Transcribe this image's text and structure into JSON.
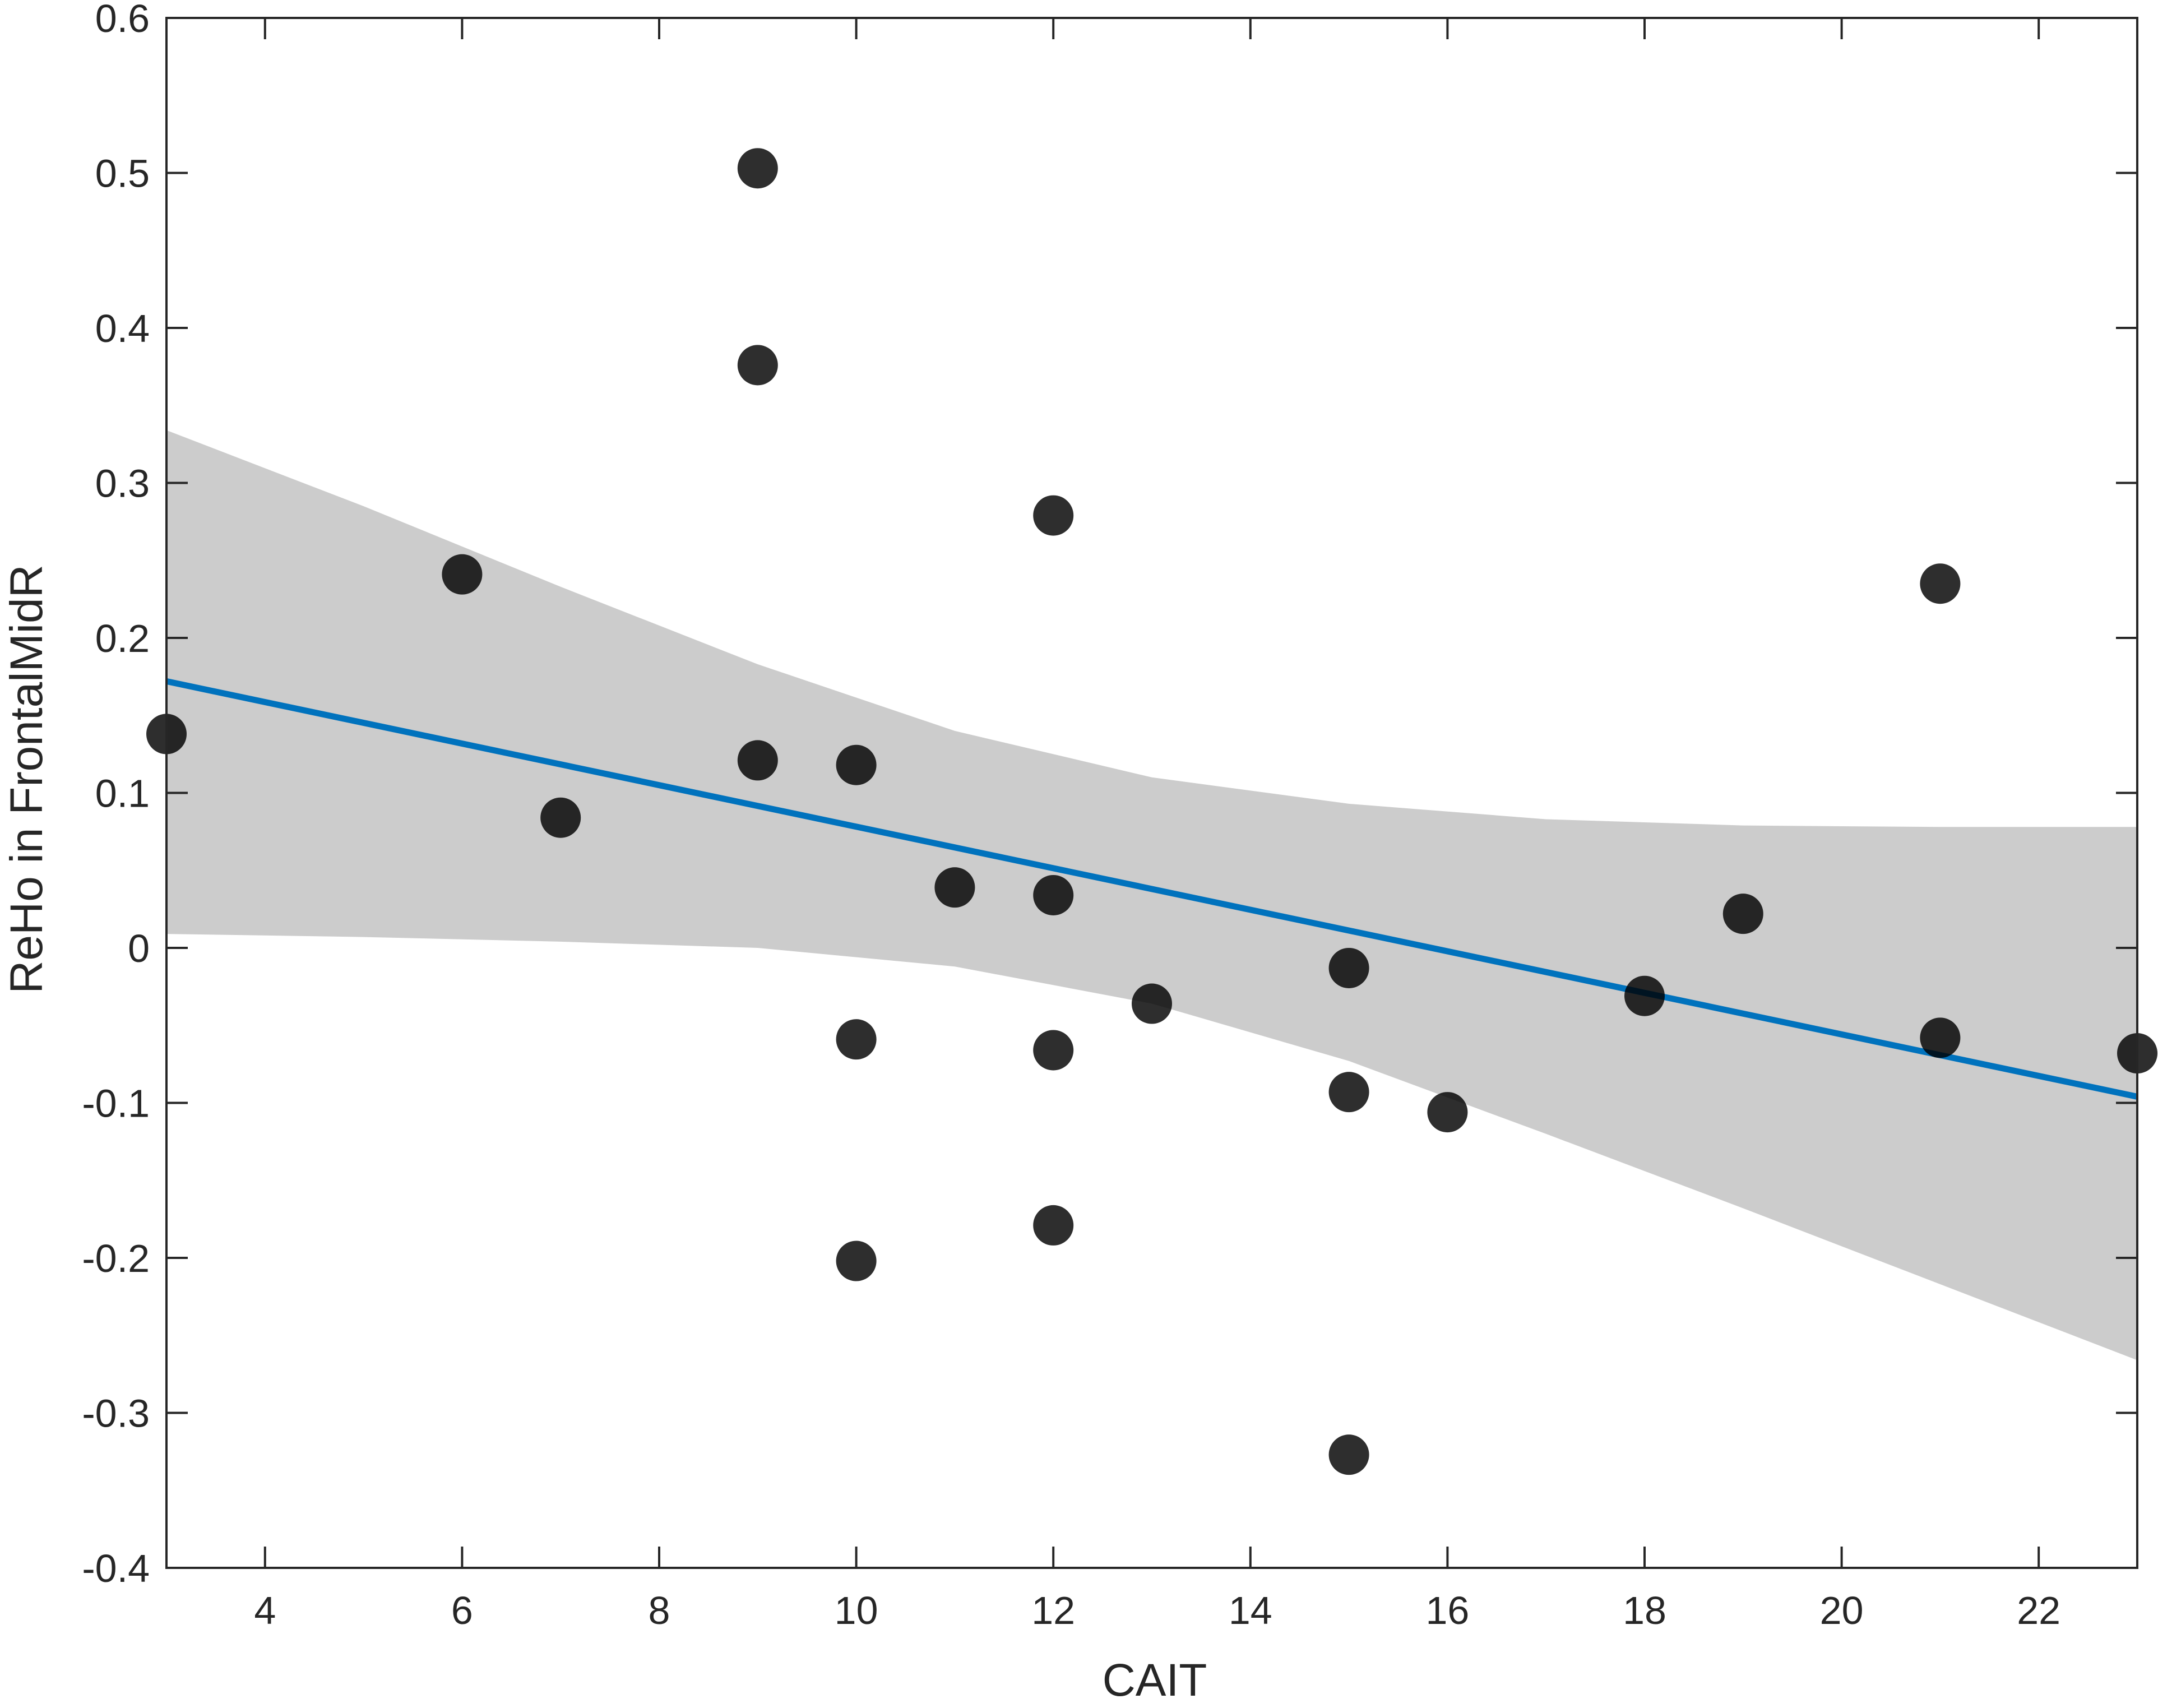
{
  "chart_data": {
    "type": "scatter",
    "title": "",
    "xlabel": "CAIT",
    "ylabel": "ReHo in FrontalMidR",
    "xlim": [
      3,
      23
    ],
    "ylim": [
      -0.4,
      0.6
    ],
    "x_ticks": [
      4,
      6,
      8,
      10,
      12,
      14,
      16,
      18,
      20,
      22
    ],
    "x_tick_labels": [
      "4",
      "6",
      "8",
      "10",
      "12",
      "14",
      "16",
      "18",
      "20",
      "22"
    ],
    "y_ticks": [
      -0.4,
      -0.3,
      -0.2,
      -0.1,
      0,
      0.1,
      0.2,
      0.3,
      0.4,
      0.5,
      0.6
    ],
    "y_tick_labels": [
      "-0.4",
      "-0.3",
      "-0.2",
      "-0.1",
      "0",
      "0.1",
      "0.2",
      "0.3",
      "0.4",
      "0.5",
      "0.6"
    ],
    "grid": false,
    "points": {
      "x": [
        3,
        6,
        7,
        9,
        9,
        9,
        10,
        10,
        10,
        11,
        12,
        12,
        12,
        12,
        13,
        15,
        15,
        15,
        16,
        18,
        19,
        21,
        21,
        23
      ],
      "y": [
        0.138,
        0.241,
        0.084,
        0.503,
        0.376,
        0.121,
        0.118,
        -0.059,
        -0.202,
        0.039,
        0.279,
        0.034,
        -0.066,
        -0.179,
        -0.036,
        -0.013,
        -0.093,
        -0.327,
        -0.106,
        -0.031,
        0.022,
        0.235,
        -0.058,
        -0.068
      ],
      "color": "#000000"
    },
    "fit_line": {
      "x": [
        3,
        23
      ],
      "y": [
        0.172,
        -0.096
      ],
      "color": "#0072BD"
    },
    "confidence_band": {
      "x": [
        3,
        5,
        7,
        9,
        11,
        13,
        15,
        17,
        19,
        21,
        23
      ],
      "upper": [
        0.334,
        0.285,
        0.233,
        0.183,
        0.14,
        0.11,
        0.093,
        0.083,
        0.079,
        0.078,
        0.078
      ],
      "lower": [
        0.009,
        0.007,
        0.004,
        0.0,
        -0.012,
        -0.036,
        -0.073,
        -0.12,
        -0.168,
        -0.217,
        -0.266
      ],
      "color": "#cccccc"
    }
  }
}
